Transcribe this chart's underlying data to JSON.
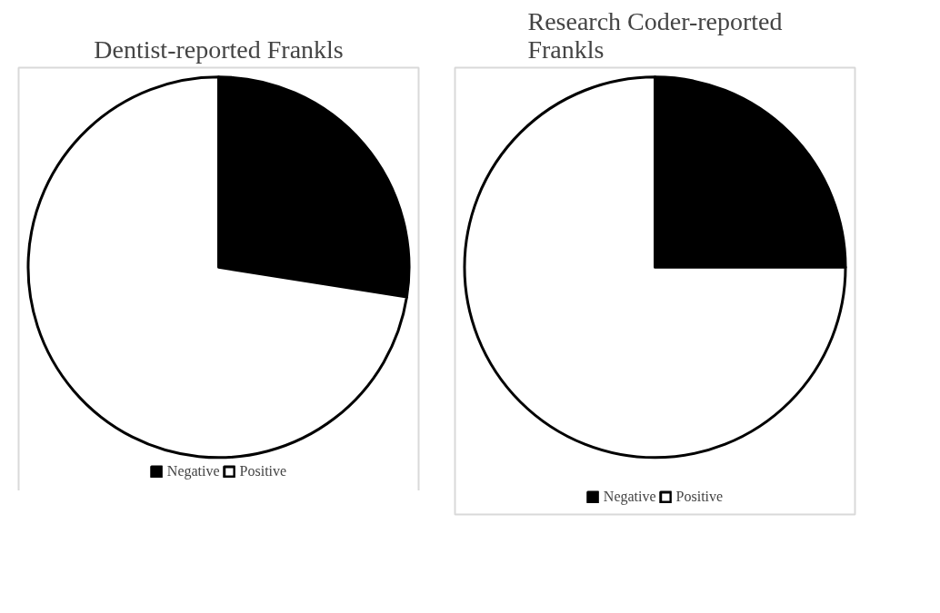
{
  "chart_data": [
    {
      "type": "pie",
      "title": "Dentist-reported Frankls",
      "categories": [
        "Negative",
        "Positive"
      ],
      "values": [
        27.5,
        72.5
      ],
      "colors": [
        "#000000",
        "#ffffff"
      ],
      "legend": "bottom"
    },
    {
      "type": "pie",
      "title": "Research Coder-reported Frankls",
      "categories": [
        "Negative",
        "Positive"
      ],
      "values": [
        25,
        75
      ],
      "colors": [
        "#000000",
        "#ffffff"
      ],
      "legend": "bottom"
    }
  ]
}
